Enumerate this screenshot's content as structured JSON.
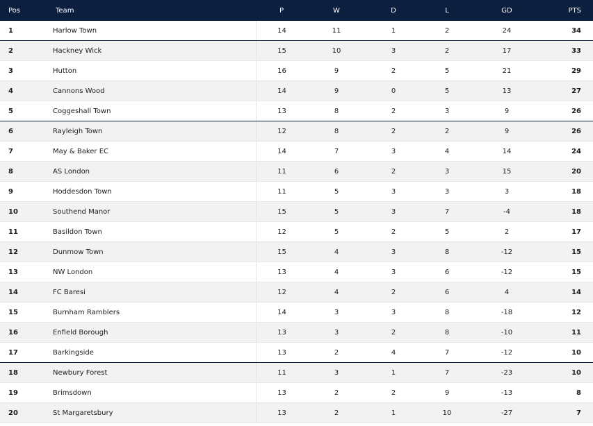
{
  "header": {
    "pos": "Pos",
    "team": "Team",
    "p": "P",
    "w": "W",
    "d": "D",
    "l": "L",
    "gd": "GD",
    "pts": "PTS"
  },
  "rows": [
    {
      "pos": "1",
      "team": "Harlow Town",
      "p": "14",
      "w": "11",
      "d": "1",
      "l": "2",
      "gd": "24",
      "pts": "34"
    },
    {
      "pos": "2",
      "team": "Hackney Wick",
      "p": "15",
      "w": "10",
      "d": "3",
      "l": "2",
      "gd": "17",
      "pts": "33"
    },
    {
      "pos": "3",
      "team": "Hutton",
      "p": "16",
      "w": "9",
      "d": "2",
      "l": "5",
      "gd": "21",
      "pts": "29"
    },
    {
      "pos": "4",
      "team": "Cannons Wood",
      "p": "14",
      "w": "9",
      "d": "0",
      "l": "5",
      "gd": "13",
      "pts": "27"
    },
    {
      "pos": "5",
      "team": "Coggeshall Town",
      "p": "13",
      "w": "8",
      "d": "2",
      "l": "3",
      "gd": "9",
      "pts": "26"
    },
    {
      "pos": "6",
      "team": "Rayleigh Town",
      "p": "12",
      "w": "8",
      "d": "2",
      "l": "2",
      "gd": "9",
      "pts": "26"
    },
    {
      "pos": "7",
      "team": "May & Baker EC",
      "p": "14",
      "w": "7",
      "d": "3",
      "l": "4",
      "gd": "14",
      "pts": "24"
    },
    {
      "pos": "8",
      "team": "AS London",
      "p": "11",
      "w": "6",
      "d": "2",
      "l": "3",
      "gd": "15",
      "pts": "20"
    },
    {
      "pos": "9",
      "team": "Hoddesdon Town",
      "p": "11",
      "w": "5",
      "d": "3",
      "l": "3",
      "gd": "3",
      "pts": "18"
    },
    {
      "pos": "10",
      "team": "Southend Manor",
      "p": "15",
      "w": "5",
      "d": "3",
      "l": "7",
      "gd": "-4",
      "pts": "18"
    },
    {
      "pos": "11",
      "team": "Basildon Town",
      "p": "12",
      "w": "5",
      "d": "2",
      "l": "5",
      "gd": "2",
      "pts": "17"
    },
    {
      "pos": "12",
      "team": "Dunmow Town",
      "p": "15",
      "w": "4",
      "d": "3",
      "l": "8",
      "gd": "-12",
      "pts": "15"
    },
    {
      "pos": "13",
      "team": "NW London",
      "p": "13",
      "w": "4",
      "d": "3",
      "l": "6",
      "gd": "-12",
      "pts": "15"
    },
    {
      "pos": "14",
      "team": "FC Baresi",
      "p": "12",
      "w": "4",
      "d": "2",
      "l": "6",
      "gd": "4",
      "pts": "14"
    },
    {
      "pos": "15",
      "team": "Burnham Ramblers",
      "p": "14",
      "w": "3",
      "d": "3",
      "l": "8",
      "gd": "-18",
      "pts": "12"
    },
    {
      "pos": "16",
      "team": "Enfield Borough",
      "p": "13",
      "w": "3",
      "d": "2",
      "l": "8",
      "gd": "-10",
      "pts": "11"
    },
    {
      "pos": "17",
      "team": "Barkingside",
      "p": "13",
      "w": "2",
      "d": "4",
      "l": "7",
      "gd": "-12",
      "pts": "10"
    },
    {
      "pos": "18",
      "team": "Newbury Forest",
      "p": "11",
      "w": "3",
      "d": "1",
      "l": "7",
      "gd": "-23",
      "pts": "10"
    },
    {
      "pos": "19",
      "team": "Brimsdown",
      "p": "13",
      "w": "2",
      "d": "2",
      "l": "9",
      "gd": "-13",
      "pts": "8"
    },
    {
      "pos": "20",
      "team": "St Margaretsbury",
      "p": "13",
      "w": "2",
      "d": "1",
      "l": "10",
      "gd": "-27",
      "pts": "7"
    }
  ],
  "colors": {
    "header_bg": "#0c1f3f",
    "row_alt": "#f2f2f2",
    "divider": "#0c1f3f"
  }
}
